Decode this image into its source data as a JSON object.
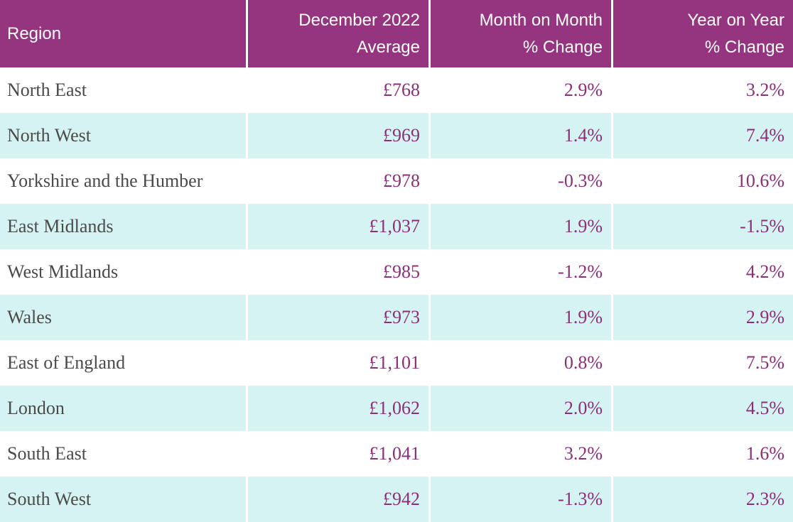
{
  "table": {
    "headers": {
      "region": "Region",
      "average_line1": "December 2022",
      "average_line2": "Average",
      "mom_line1": "Month on Month",
      "mom_line2": "% Change",
      "yoy_line1": "Year on Year",
      "yoy_line2": "% Change"
    },
    "rows": [
      {
        "region": "North East",
        "average": "£768",
        "mom": "2.9%",
        "yoy": "3.2%"
      },
      {
        "region": "North West",
        "average": "£969",
        "mom": "1.4%",
        "yoy": "7.4%"
      },
      {
        "region": "Yorkshire and the Humber",
        "average": "£978",
        "mom": "-0.3%",
        "yoy": "10.6%"
      },
      {
        "region": "East Midlands",
        "average": "£1,037",
        "mom": "1.9%",
        "yoy": "-1.5%"
      },
      {
        "region": "West Midlands",
        "average": "£985",
        "mom": "-1.2%",
        "yoy": "4.2%"
      },
      {
        "region": "Wales",
        "average": "£973",
        "mom": "1.9%",
        "yoy": "2.9%"
      },
      {
        "region": "East of England",
        "average": "£1,101",
        "mom": "0.8%",
        "yoy": "7.5%"
      },
      {
        "region": "London",
        "average": "£1,062",
        "mom": "2.0%",
        "yoy": "4.5%"
      },
      {
        "region": "South East",
        "average": "£1,041",
        "mom": "3.2%",
        "yoy": "1.6%"
      },
      {
        "region": "South West",
        "average": "£942",
        "mom": "-1.3%",
        "yoy": "2.3%"
      }
    ]
  },
  "colors": {
    "header_background": "#95357f",
    "header_text": "#ffffff",
    "stripe_background": "#d6f3f3",
    "value_text": "#8a2f78",
    "region_text": "#4a4a4a"
  }
}
